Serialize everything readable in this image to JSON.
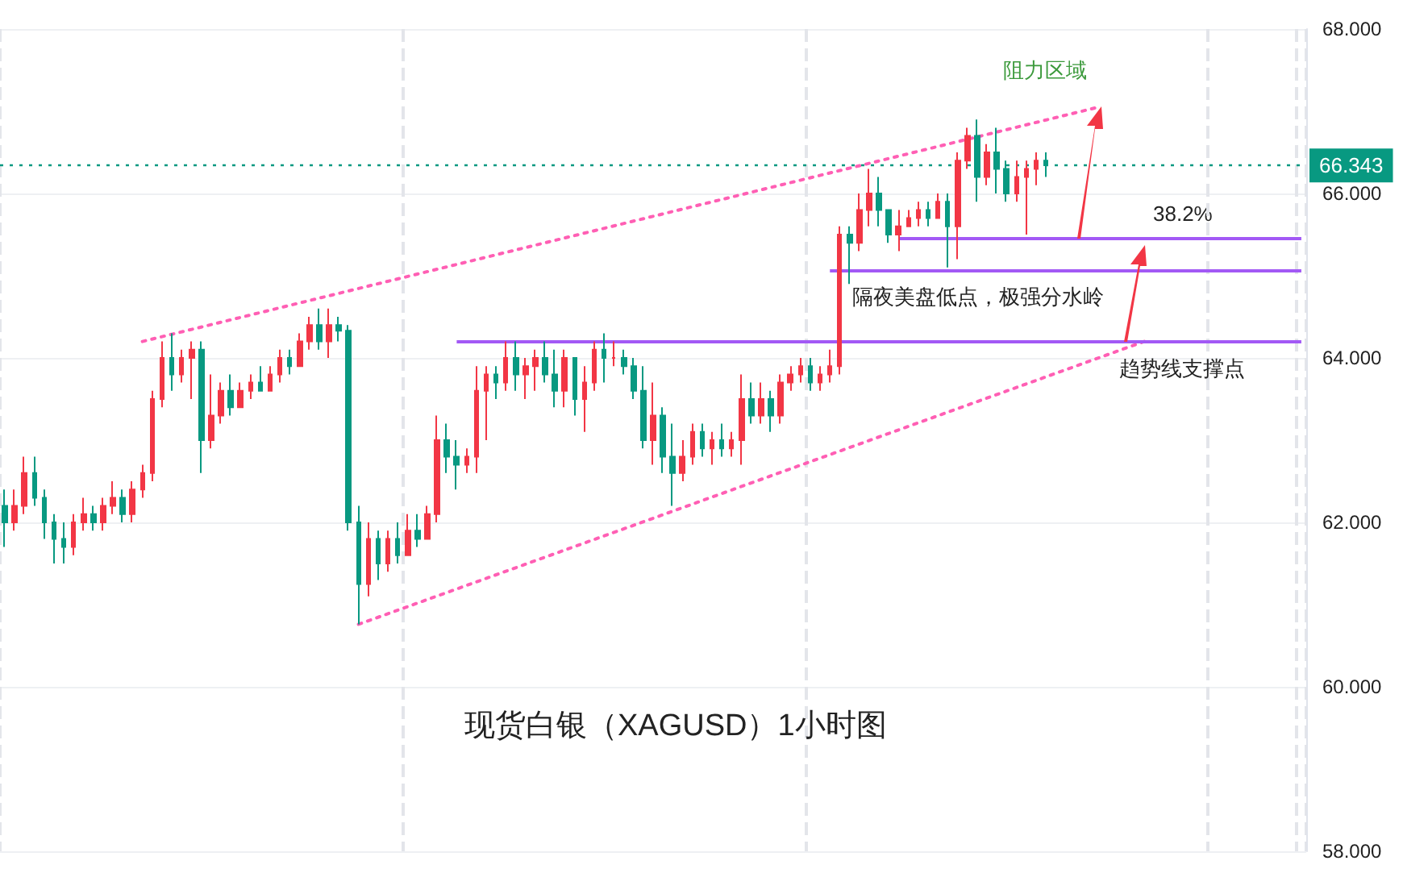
{
  "chart_data": {
    "type": "candlestick",
    "title": "现货白银（XAGUSD）1小时图",
    "annotations": [
      "阻力区域",
      "38.2%"
    ],
    "categories": [
      null,
      null,
      null,
      null,
      null,
      null,
      null,
      null,
      null,
      null,
      null,
      null,
      null,
      null,
      null,
      null,
      null,
      null,
      null,
      null,
      null,
      null,
      null,
      null,
      null,
      null,
      null,
      null,
      null,
      null,
      null,
      null,
      null,
      null,
      null,
      null,
      null,
      null,
      null,
      null,
      null,
      null,
      null,
      null,
      null,
      null,
      null,
      null,
      null,
      null,
      null,
      null,
      null,
      null,
      null,
      null,
      null,
      null,
      null,
      null,
      null,
      null,
      null,
      null,
      null,
      null,
      null,
      null,
      null,
      null,
      null,
      null,
      null,
      null,
      null,
      null,
      null,
      null,
      null,
      null,
      null,
      null,
      null,
      null,
      null,
      null,
      null,
      null,
      null,
      null,
      null,
      null,
      null,
      null,
      null,
      null,
      null,
      null,
      null,
      null,
      null,
      null,
      null,
      null,
      null,
      null,
      null,
      null,
      null,
      null,
      null,
      null,
      null,
      null,
      null,
      null,
      null,
      null,
      null,
      null,
      null,
      null,
      null,
      null,
      null,
      null,
      null,
      null,
      null,
      null,
      null,
      null,
      null
    ],
    "ohlc": [
      [
        62.2,
        62.4,
        61.7,
        62.0
      ],
      [
        62.0,
        62.4,
        61.9,
        62.2
      ],
      [
        62.2,
        62.8,
        62.1,
        62.6
      ],
      [
        62.6,
        62.8,
        62.2,
        62.3
      ],
      [
        62.3,
        62.4,
        61.8,
        62.0
      ],
      [
        62.0,
        62.1,
        61.5,
        61.8
      ],
      [
        61.8,
        62.0,
        61.5,
        61.7
      ],
      [
        61.7,
        62.1,
        61.6,
        62.0
      ],
      [
        62.0,
        62.3,
        61.9,
        62.1
      ],
      [
        62.1,
        62.2,
        61.9,
        62.0
      ],
      [
        62.0,
        62.3,
        61.9,
        62.2
      ],
      [
        62.2,
        62.5,
        62.1,
        62.3
      ],
      [
        62.3,
        62.4,
        62.0,
        62.1
      ],
      [
        62.1,
        62.5,
        62.0,
        62.4
      ],
      [
        62.4,
        62.7,
        62.3,
        62.6
      ],
      [
        62.6,
        63.6,
        62.5,
        63.5
      ],
      [
        63.5,
        64.2,
        63.4,
        64.0
      ],
      [
        64.0,
        64.3,
        63.6,
        63.8
      ],
      [
        63.8,
        64.1,
        63.7,
        64.0
      ],
      [
        64.0,
        64.2,
        63.5,
        64.1
      ],
      [
        64.1,
        64.2,
        62.6,
        63.0
      ],
      [
        63.0,
        63.8,
        62.9,
        63.3
      ],
      [
        63.3,
        63.7,
        63.2,
        63.6
      ],
      [
        63.6,
        63.8,
        63.3,
        63.4
      ],
      [
        63.4,
        63.7,
        63.4,
        63.6
      ],
      [
        63.6,
        63.8,
        63.5,
        63.7
      ],
      [
        63.7,
        63.9,
        63.6,
        63.6
      ],
      [
        63.6,
        63.9,
        63.6,
        63.8
      ],
      [
        63.8,
        64.1,
        63.7,
        64.0
      ],
      [
        64.0,
        64.1,
        63.8,
        63.9
      ],
      [
        63.9,
        64.3,
        63.9,
        64.2
      ],
      [
        64.2,
        64.5,
        64.1,
        64.4
      ],
      [
        64.4,
        64.6,
        64.1,
        64.2
      ],
      [
        64.2,
        64.6,
        64.0,
        64.4
      ],
      [
        64.4,
        64.5,
        64.2,
        64.33
      ],
      [
        64.33,
        64.4,
        61.9,
        62.0
      ],
      [
        62.0,
        62.2,
        60.76,
        61.25
      ],
      [
        61.25,
        62.0,
        61.1,
        61.8
      ],
      [
        61.8,
        61.9,
        61.3,
        61.5
      ],
      [
        61.5,
        61.9,
        61.4,
        61.8
      ],
      [
        61.8,
        62.0,
        61.5,
        61.6
      ],
      [
        61.6,
        62.1,
        61.6,
        61.9
      ],
      [
        61.9,
        62.1,
        61.7,
        61.8
      ],
      [
        61.8,
        62.2,
        61.8,
        62.1
      ],
      [
        62.1,
        63.3,
        62.0,
        63.0
      ],
      [
        63.0,
        63.2,
        62.6,
        62.8
      ],
      [
        62.8,
        63.0,
        62.4,
        62.7
      ],
      [
        62.7,
        62.9,
        62.6,
        62.8
      ],
      [
        62.8,
        63.9,
        62.6,
        63.6
      ],
      [
        63.6,
        63.9,
        63.0,
        63.8
      ],
      [
        63.8,
        63.9,
        63.5,
        63.7
      ],
      [
        63.7,
        64.2,
        63.6,
        64.0
      ],
      [
        64.0,
        64.2,
        63.6,
        63.8
      ],
      [
        63.8,
        64.0,
        63.5,
        63.9
      ],
      [
        63.9,
        64.1,
        63.6,
        64.0
      ],
      [
        64.0,
        64.2,
        63.7,
        63.8
      ],
      [
        63.8,
        64.1,
        63.4,
        63.6
      ],
      [
        63.6,
        64.1,
        63.4,
        64.0
      ],
      [
        64.0,
        64.0,
        63.3,
        63.5
      ],
      [
        63.5,
        63.9,
        63.1,
        63.7
      ],
      [
        63.7,
        64.2,
        63.6,
        64.1
      ],
      [
        64.1,
        64.3,
        63.7,
        64.0
      ],
      [
        64.0,
        64.2,
        63.9,
        64.0
      ],
      [
        64.0,
        64.1,
        63.8,
        63.9
      ],
      [
        63.9,
        64.0,
        63.5,
        63.6
      ],
      [
        63.6,
        63.9,
        62.9,
        63.0
      ],
      [
        63.0,
        63.7,
        62.7,
        63.3
      ],
      [
        63.3,
        63.4,
        62.6,
        62.8
      ],
      [
        62.8,
        63.2,
        62.2,
        62.6
      ],
      [
        62.6,
        63.0,
        62.5,
        62.8
      ],
      [
        62.8,
        63.2,
        62.7,
        63.1
      ],
      [
        63.1,
        63.2,
        62.8,
        62.9
      ],
      [
        62.9,
        63.1,
        62.7,
        63.0
      ],
      [
        63.0,
        63.2,
        62.8,
        62.9
      ],
      [
        62.9,
        63.1,
        62.8,
        63.0
      ],
      [
        63.0,
        63.8,
        62.7,
        63.5
      ],
      [
        63.5,
        63.7,
        63.2,
        63.3
      ],
      [
        63.3,
        63.7,
        63.2,
        63.5
      ],
      [
        63.5,
        63.6,
        63.1,
        63.3
      ],
      [
        63.3,
        63.8,
        63.2,
        63.7
      ],
      [
        63.7,
        63.9,
        63.6,
        63.8
      ],
      [
        63.8,
        64.0,
        63.7,
        63.9
      ],
      [
        63.9,
        64.0,
        63.6,
        63.7
      ],
      [
        63.7,
        63.9,
        63.6,
        63.8
      ],
      [
        63.8,
        64.1,
        63.7,
        63.9
      ],
      [
        63.9,
        65.6,
        63.8,
        65.5
      ],
      [
        65.5,
        65.6,
        64.9,
        65.4
      ],
      [
        65.4,
        66.0,
        65.3,
        65.8
      ],
      [
        65.8,
        66.3,
        65.6,
        66.0
      ],
      [
        66.0,
        66.2,
        65.6,
        65.8
      ],
      [
        65.8,
        65.8,
        65.4,
        65.5
      ],
      [
        65.5,
        65.8,
        65.3,
        65.6
      ],
      [
        65.6,
        65.8,
        65.6,
        65.7
      ],
      [
        65.7,
        65.9,
        65.6,
        65.8
      ],
      [
        65.8,
        65.9,
        65.6,
        65.7
      ],
      [
        65.7,
        66.0,
        65.7,
        65.9
      ],
      [
        65.9,
        66.0,
        65.1,
        65.6
      ],
      [
        65.6,
        66.5,
        65.2,
        66.4
      ],
      [
        66.4,
        66.8,
        66.3,
        66.7
      ],
      [
        66.7,
        66.9,
        65.9,
        66.2
      ],
      [
        66.2,
        66.6,
        66.1,
        66.5
      ],
      [
        66.5,
        66.8,
        66.0,
        66.3
      ],
      [
        66.3,
        66.4,
        65.9,
        66.0
      ],
      [
        66.0,
        66.4,
        65.9,
        66.2
      ],
      [
        66.2,
        66.4,
        65.5,
        66.3
      ],
      [
        66.3,
        66.5,
        66.1,
        66.4
      ],
      [
        66.4,
        66.5,
        66.2,
        66.343
      ],
      null,
      null,
      null,
      null,
      null,
      null,
      null,
      null,
      null,
      null,
      null,
      null,
      null,
      null,
      null,
      null,
      null,
      null,
      null,
      null,
      null,
      null,
      null,
      null,
      null,
      null
    ],
    "colors": [
      "#089981",
      "#f23645",
      "#f23645",
      "#089981",
      "#089981",
      "#089981",
      "#089981",
      "#f23645",
      "#f23645",
      "#089981",
      "#f23645",
      "#f23645",
      "#089981",
      "#f23645",
      "#f23645",
      "#f23645",
      "#f23645",
      "#089981",
      "#f23645",
      "#f23645",
      "#089981",
      "#f23645",
      "#f23645",
      "#089981",
      "#f23645",
      "#f23645",
      "#089981",
      "#f23645",
      "#f23645",
      "#089981",
      "#f23645",
      "#f23645",
      "#089981",
      "#f23645",
      "#089981",
      "#089981",
      "#089981",
      "#f23645",
      "#089981",
      "#f23645",
      "#089981",
      "#f23645",
      "#089981",
      "#f23645",
      "#f23645",
      "#089981",
      "#089981",
      "#f23645",
      "#f23645",
      "#f23645",
      "#089981",
      "#f23645",
      "#089981",
      "#f23645",
      "#f23645",
      "#089981",
      "#089981",
      "#f23645",
      "#089981",
      "#f23645",
      "#f23645",
      "#089981",
      "#f23645",
      "#089981",
      "#089981",
      "#089981",
      "#f23645",
      "#089981",
      "#089981",
      "#f23645",
      "#f23645",
      "#089981",
      "#f23645",
      "#089981",
      "#f23645",
      "#f23645",
      "#089981",
      "#f23645",
      "#089981",
      "#f23645",
      "#f23645",
      "#f23645",
      "#089981",
      "#f23645",
      "#f23645",
      "#f23645",
      "#089981",
      "#f23645",
      "#f23645",
      "#089981",
      "#089981",
      "#f23645",
      "#f23645",
      "#f23645",
      "#089981",
      "#f23645",
      "#089981",
      "#f23645",
      "#f23645",
      "#089981",
      "#f23645",
      "#089981",
      "#089981",
      "#f23645",
      "#f23645",
      "#f23645",
      "#089981",
      null,
      null,
      null,
      null,
      null,
      null,
      null,
      null,
      null,
      null,
      null,
      null,
      null,
      null,
      null,
      null,
      null,
      null,
      null,
      null,
      null,
      null,
      null,
      null,
      null,
      null
    ],
    "series": [
      {
        "type": "line",
        "color": "#ff5fb4",
        "line_style": "dotted",
        "values": [
          null,
          null,
          null,
          null,
          null,
          null,
          null,
          null,
          null,
          null,
          null,
          null,
          null,
          null,
          64.2,
          null,
          null,
          null,
          null,
          null,
          null,
          null,
          null,
          null,
          null,
          null,
          null,
          null,
          null,
          null,
          null,
          null,
          null,
          null,
          null,
          null,
          null,
          null,
          null,
          null,
          null,
          null,
          null,
          null,
          null,
          null,
          null,
          null,
          null,
          null,
          null,
          null,
          null,
          null,
          null,
          null,
          null,
          null,
          null,
          null,
          null,
          null,
          null,
          null,
          null,
          null,
          null,
          null,
          null,
          null,
          null,
          null,
          null,
          null,
          null,
          null,
          null,
          null,
          null,
          null,
          null,
          null,
          null,
          null,
          null,
          null,
          null,
          null,
          null,
          null,
          null,
          null,
          null,
          null,
          null,
          null,
          null,
          null,
          null,
          null,
          null,
          null,
          null,
          null,
          null,
          null,
          null,
          null,
          null,
          null,
          null,
          67.04,
          null,
          null,
          null,
          null,
          null,
          null,
          null,
          null,
          null,
          null,
          null,
          null,
          null,
          null,
          null,
          null,
          null,
          null,
          null,
          null,
          null
        ]
      },
      {
        "type": "line",
        "color": "#ff5fb4",
        "line_style": "dotted",
        "values": [
          null,
          null,
          null,
          null,
          null,
          null,
          null,
          null,
          null,
          null,
          null,
          null,
          null,
          null,
          null,
          null,
          null,
          null,
          null,
          null,
          null,
          null,
          null,
          null,
          null,
          null,
          null,
          null,
          null,
          null,
          null,
          null,
          null,
          null,
          null,
          null,
          60.76,
          null,
          null,
          null,
          null,
          null,
          null,
          null,
          null,
          null,
          null,
          null,
          null,
          null,
          null,
          null,
          null,
          null,
          null,
          null,
          null,
          null,
          null,
          null,
          null,
          null,
          null,
          null,
          null,
          null,
          null,
          null,
          null,
          null,
          null,
          null,
          null,
          null,
          null,
          null,
          null,
          null,
          null,
          null,
          null,
          null,
          null,
          null,
          null,
          null,
          null,
          null,
          null,
          null,
          null,
          null,
          null,
          null,
          null,
          null,
          null,
          null,
          null,
          null,
          null,
          null,
          null,
          null,
          null,
          null,
          null,
          null,
          null,
          null,
          null,
          null,
          null,
          null,
          null,
          null,
          64.2,
          null,
          null,
          null,
          null,
          null,
          null,
          null,
          null,
          null,
          null,
          null,
          null,
          null,
          null,
          null,
          null
        ]
      }
    ],
    "ref_lines": [
      {
        "axis": "y",
        "value": 66.343,
        "label": "66.343",
        "color": "#089981",
        "line_style": "dotted"
      },
      {
        "axis": "y",
        "value": 65.45,
        "color": "#a259f5"
      },
      {
        "axis": "y",
        "value": 65.07,
        "label": "隔夜美盘低点，极强分水岭",
        "color": "#a259f5"
      },
      {
        "axis": "y",
        "value": 64.2,
        "label": "趋势线支撑点",
        "color": "#a259f5"
      }
    ],
    "ylim": [
      58,
      68
    ],
    "yticks": [
      {
        "value": 58,
        "label": "58.000"
      },
      {
        "value": 60,
        "label": "60.000"
      },
      {
        "value": 62,
        "label": "62.000"
      },
      {
        "value": 64,
        "label": "64.000"
      },
      {
        "value": 66,
        "label": "66.000"
      },
      {
        "value": 68,
        "label": "68.000"
      }
    ],
    "tick_labels": "y",
    "grid": true
  }
}
